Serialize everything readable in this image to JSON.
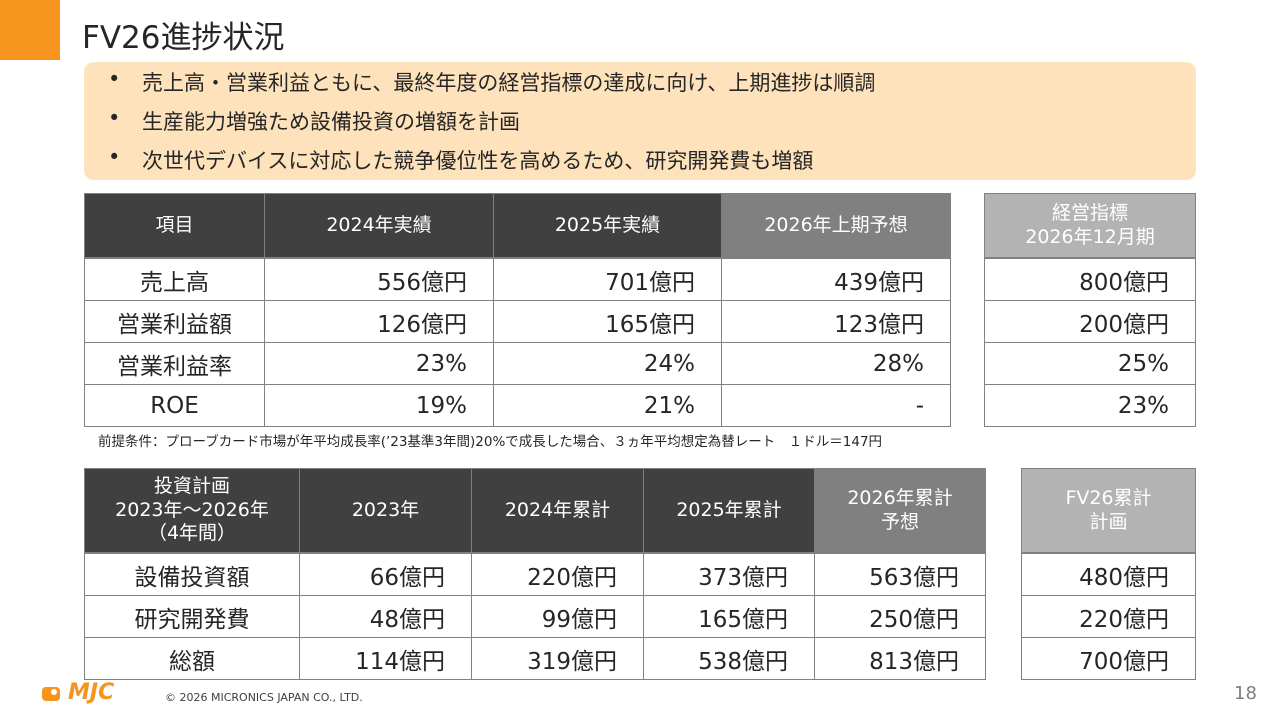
{
  "title": "FV26進捗状況",
  "bullets": [
    "売上高・営業利益ともに、最終年度の経営指標の達成に向け、上期進捗は順調",
    "生産能力増強ため設備投資の増額を計画",
    "次世代デバイスに対応した競争優位性を高めるため、研究開発費も増額"
  ],
  "table1": {
    "headers": [
      "項目",
      "2024年実績",
      "2025年実績",
      "2026年上期予想"
    ],
    "rows": [
      [
        "売上高",
        "556億円",
        "701億円",
        "439億円"
      ],
      [
        "営業利益額",
        "126億円",
        "165億円",
        "123億円"
      ],
      [
        "営業利益率",
        "23%",
        "24%",
        "28%"
      ],
      [
        "ROE",
        "19%",
        "21%",
        "-"
      ]
    ]
  },
  "side1": {
    "header": "経営指標\n2026年12月期",
    "rows": [
      "800億円",
      "200億円",
      "25%",
      "23%"
    ]
  },
  "note": "前提条件：プローブカード市場が年平均成長率(’23基準3年間)20%で成長した場合、３ヵ年平均想定為替レート　１ドル＝147円",
  "table2": {
    "headers": [
      "投資計画\n2023年～2026年\n（4年間）",
      "2023年",
      "2024年累計",
      "2025年累計",
      "2026年累計\n予想"
    ],
    "rows": [
      [
        "設備投資額",
        "66億円",
        "220億円",
        "373億円",
        "563億円"
      ],
      [
        "研究開発費",
        "48億円",
        "99億円",
        "165億円",
        "250億円"
      ],
      [
        "総額",
        "114億円",
        "319億円",
        "538億円",
        "813億円"
      ]
    ]
  },
  "side2": {
    "header": "FV26累計\n計画",
    "rows": [
      "480億円",
      "220億円",
      "700億円"
    ]
  },
  "footer": {
    "logo": "MJC",
    "copyright": "© 2026 MICRONICS JAPAN CO., LTD.",
    "page": "18"
  }
}
